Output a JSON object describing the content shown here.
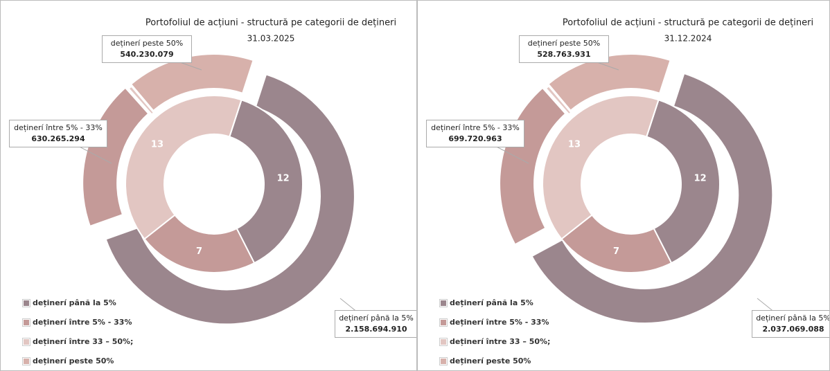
{
  "chart_data": [
    {
      "type": "double-donut",
      "title": "Portofoliul de acțiuni - structură pe categorii de dețineri",
      "subtitle": "31.03.2025",
      "categories": [
        "deținerí până la 5%",
        "deținerí între 5% - 33%",
        "deținerí între 33 – 50%;",
        "deținerí peste 50%"
      ],
      "colors": [
        "#9b868d",
        "#c49a98",
        "#e2c6c2",
        "#d7b1ab"
      ],
      "values": [
        2158694910,
        630265294,
        15000000,
        540230079
      ],
      "value_labels": [
        "2.158.694.910",
        "630.265.294",
        null,
        "540.230.079"
      ],
      "inner_values": [
        12,
        7,
        13,
        0
      ],
      "legend": "bottom-left"
    },
    {
      "type": "double-donut",
      "title": "Portofoliul de acțiuni - structură pe categorii de dețineri",
      "subtitle": "31.12.2024",
      "categories": [
        "deținerí până la 5%",
        "deținerí între 5% - 33%",
        "deținerí între 33 – 50%;",
        "deținerí peste 50%"
      ],
      "colors": [
        "#9b868d",
        "#c49a98",
        "#e2c6c2",
        "#d7b1ab"
      ],
      "values": [
        2037069088,
        699720963,
        15000000,
        528763931
      ],
      "value_labels": [
        "2.037.069.088",
        "699.720.963",
        null,
        "528.763.931"
      ],
      "inner_values": [
        12,
        7,
        13,
        0
      ],
      "legend": "bottom-left"
    }
  ]
}
